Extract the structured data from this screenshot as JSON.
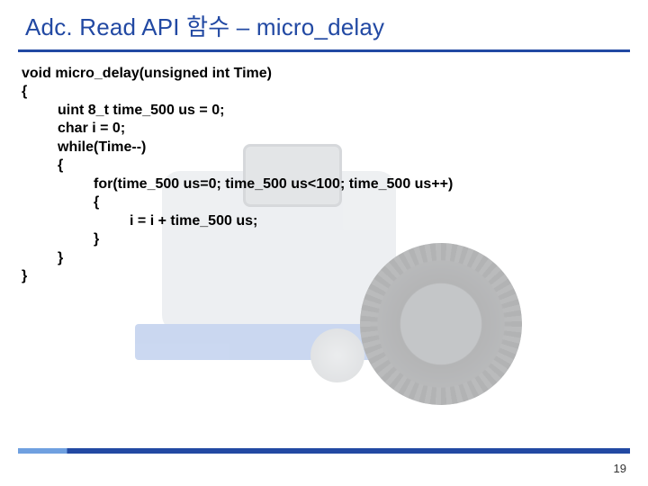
{
  "title": {
    "text_left": "Adc. Read API 함수",
    "dash": " – ",
    "text_right": "micro_delay",
    "color": "#2249a3",
    "underline_color": "#2249a3",
    "fontsize": 26
  },
  "code": {
    "lines": [
      "void micro_delay(unsigned int Time)",
      "{",
      "         uint 8_t time_500 us = 0;",
      "         char i = 0;",
      "         while(Time--)",
      "         {",
      "                  for(time_500 us=0; time_500 us<100; time_500 us++)",
      "                  {",
      "                           i = i + time_500 us;",
      "                  }",
      "         }",
      "}"
    ],
    "font_weight": 700,
    "font_size": 16,
    "text_color": "#000000"
  },
  "footer": {
    "bar_color_left": "#6fa0e0",
    "bar_color_right": "#2249a3",
    "page_number": "19"
  },
  "background": {
    "opacity": 0.35,
    "description": "robot-vehicle-photo"
  }
}
